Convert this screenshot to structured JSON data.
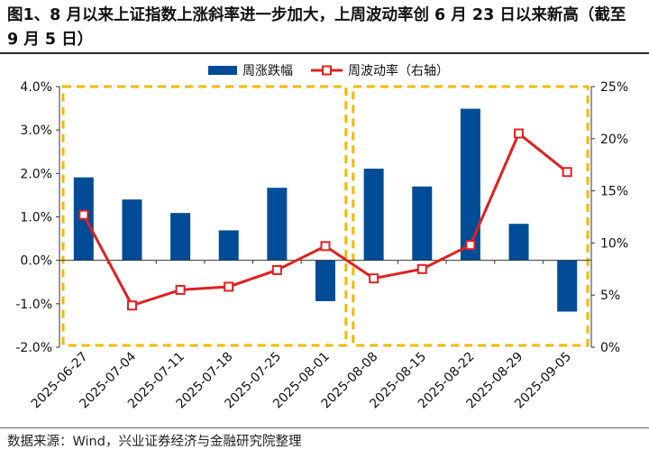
{
  "title": "图1、8 月以来上证指数上涨斜率进一步加大，上周波动率创 6 月 23 日以来新高（截至 9 月 5 日）",
  "source": "数据来源：Wind，兴业证券经济与金融研究院整理",
  "colors": {
    "bar": "#004C97",
    "line": "#E02020",
    "highlight_box": "#F5B700"
  },
  "chart_data": {
    "type": "bar+line",
    "title": "",
    "categories": [
      "2025-06-27",
      "2025-07-04",
      "2025-07-11",
      "2025-07-18",
      "2025-07-25",
      "2025-08-01",
      "2025-08-08",
      "2025-08-15",
      "2025-08-22",
      "2025-08-29",
      "2025-09-05"
    ],
    "series": [
      {
        "name": "周涨跌幅",
        "type": "bar",
        "axis": "left",
        "values": [
          1.91,
          1.4,
          1.09,
          0.69,
          1.67,
          -0.94,
          2.11,
          1.7,
          3.49,
          0.84,
          -1.18
        ]
      },
      {
        "name": "周波动率（右轴）",
        "type": "line",
        "axis": "right",
        "values": [
          12.7,
          4.0,
          5.5,
          5.8,
          7.4,
          9.7,
          6.6,
          7.5,
          9.8,
          20.5,
          16.8
        ]
      }
    ],
    "y_left": {
      "min": -2.0,
      "max": 4.0,
      "ticks": [
        "-2.0%",
        "-1.0%",
        "0.0%",
        "1.0%",
        "2.0%",
        "3.0%",
        "4.0%"
      ]
    },
    "y_right": {
      "min": 0,
      "max": 25,
      "ticks": [
        "0%",
        "5%",
        "10%",
        "15%",
        "20%",
        "25%"
      ]
    },
    "highlight_ranges": [
      {
        "from": "2025-06-27",
        "to": "2025-08-01"
      },
      {
        "from": "2025-08-08",
        "to": "2025-09-05"
      }
    ],
    "legend": {
      "position": "top-center"
    },
    "grid": false
  }
}
